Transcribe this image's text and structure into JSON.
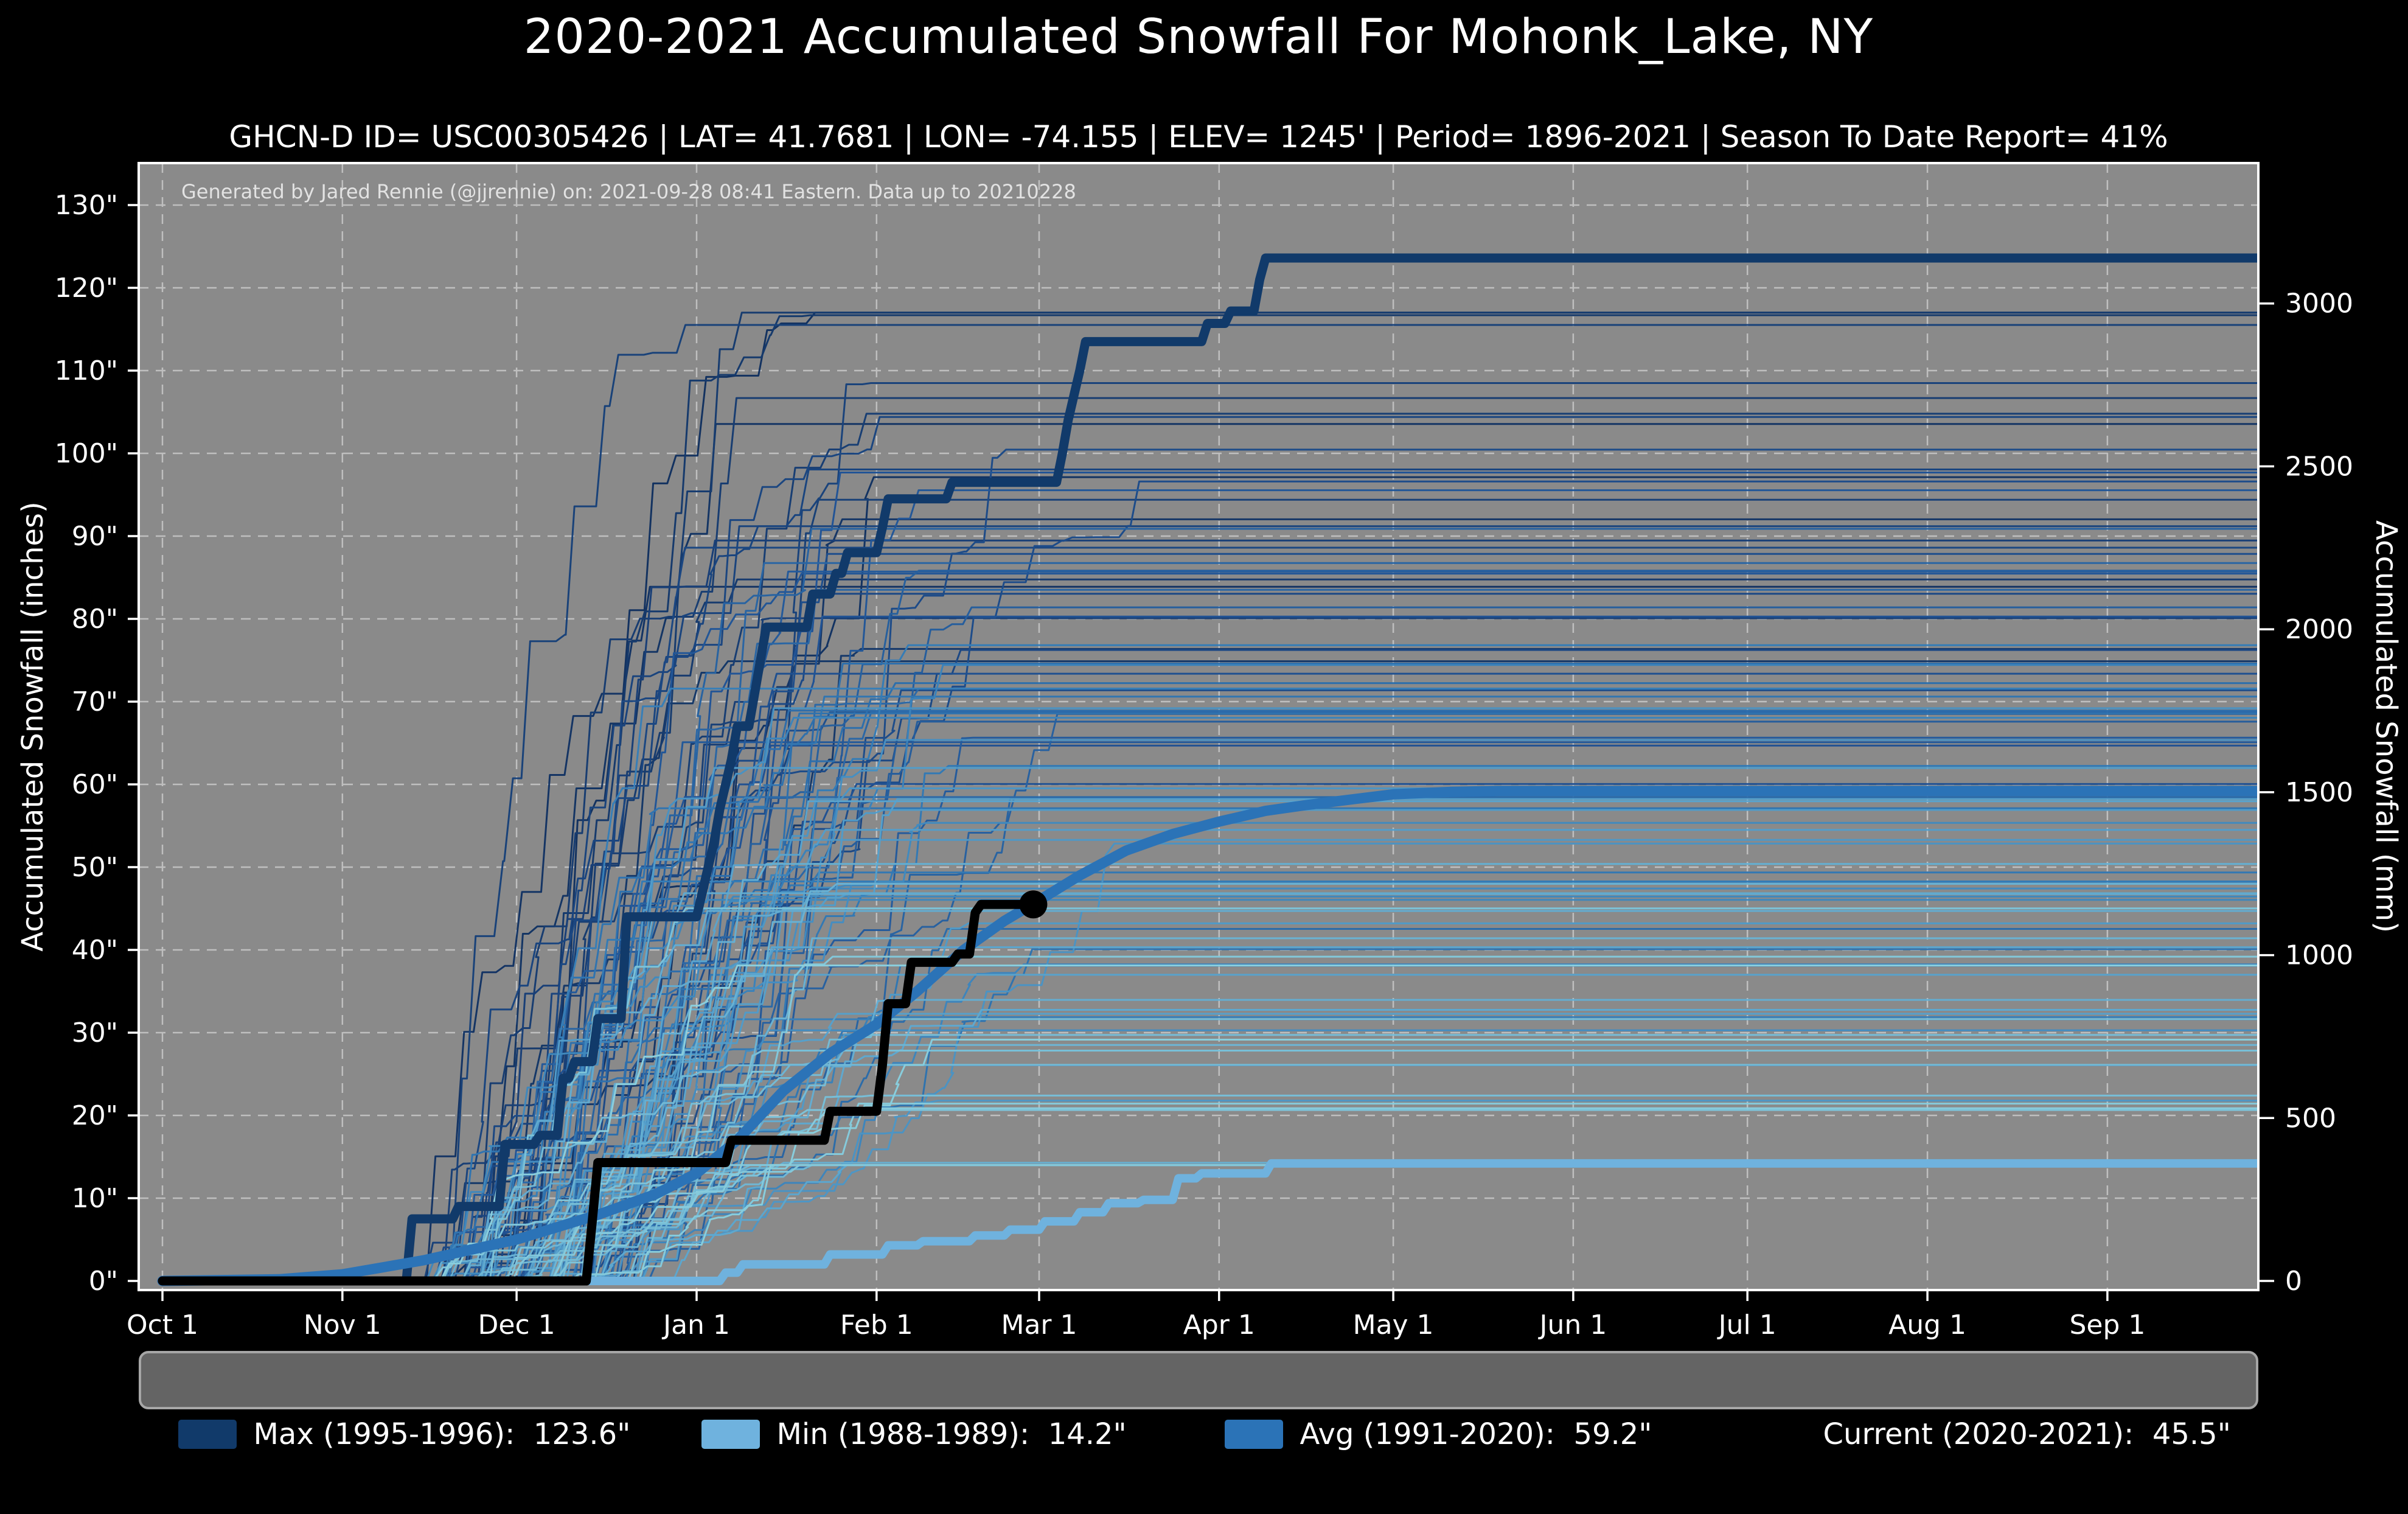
{
  "title": "2020-2021 Accumulated Snowfall For Mohonk_Lake, NY",
  "subtitle": "GHCN-D ID= USC00305426 | LAT= 41.7681 | LON= -74.155 | ELEV= 1245' | Period= 1896-2021 | Season To Date Report= 41%",
  "watermark": "Generated by Jared Rennie (@jjrennie) on: 2021-09-28 08:41 Eastern. Data up to 20210228",
  "colors": {
    "page_background": "#000000",
    "plot_background": "#8a8a8a",
    "gridline": "#ffffff",
    "spine": "#ffffff",
    "tick_label": "#ffffff",
    "title_text": "#ffffff",
    "watermark_text": "#e2e2e2",
    "legend_background": "#646464",
    "legend_border": "#a6a6a6"
  },
  "legend": {
    "entries": [
      {
        "id": "max",
        "label": "Max (1995-1996):  123.6\"",
        "color": "#113a6a"
      },
      {
        "id": "min",
        "label": "Min (1988-1989):  14.2\"",
        "color": "#6fb2de"
      },
      {
        "id": "avg",
        "label": "Avg (1991-2020):  59.2\"",
        "color": "#2b73b7"
      },
      {
        "id": "current",
        "label": "Current (2020-2021):  45.5\"",
        "color": "#000000"
      }
    ]
  },
  "chart_data": {
    "type": "line",
    "title": "2020-2021 Accumulated Snowfall For Mohonk_Lake, NY",
    "grid": true,
    "x_axis": {
      "unit": "day-of-season (Oct 1 = 0)",
      "range": [
        0,
        361
      ],
      "ticks": [
        {
          "day": 0,
          "label": "Oct 1"
        },
        {
          "day": 31,
          "label": "Nov 1"
        },
        {
          "day": 61,
          "label": "Dec 1"
        },
        {
          "day": 92,
          "label": "Jan 1"
        },
        {
          "day": 123,
          "label": "Feb 1"
        },
        {
          "day": 151,
          "label": "Mar 1"
        },
        {
          "day": 182,
          "label": "Apr 1"
        },
        {
          "day": 212,
          "label": "May 1"
        },
        {
          "day": 243,
          "label": "Jun 1"
        },
        {
          "day": 273,
          "label": "Jul 1"
        },
        {
          "day": 304,
          "label": "Aug 1"
        },
        {
          "day": 335,
          "label": "Sep 1"
        }
      ]
    },
    "y_axis_left": {
      "label": "Accumulated Snowfall (inches)",
      "range": [
        0,
        135
      ],
      "ticks": [
        {
          "v": 0,
          "label": "0\""
        },
        {
          "v": 10,
          "label": "10\""
        },
        {
          "v": 20,
          "label": "20\""
        },
        {
          "v": 30,
          "label": "30\""
        },
        {
          "v": 40,
          "label": "40\""
        },
        {
          "v": 50,
          "label": "50\""
        },
        {
          "v": 60,
          "label": "60\""
        },
        {
          "v": 70,
          "label": "70\""
        },
        {
          "v": 80,
          "label": "80\""
        },
        {
          "v": 90,
          "label": "90\""
        },
        {
          "v": 100,
          "label": "100\""
        },
        {
          "v": 110,
          "label": "110\""
        },
        {
          "v": 120,
          "label": "120\""
        },
        {
          "v": 130,
          "label": "130\""
        }
      ]
    },
    "y_axis_right": {
      "label": "Accumulated Snowfall (mm)",
      "mm_per_inch": 25.4,
      "ticks": [
        0,
        500,
        1000,
        1500,
        2000,
        2500,
        3000
      ]
    },
    "series": [
      {
        "id": "max",
        "name": "Max (1995-1996)",
        "total_in": 123.6,
        "color": "#113a6a",
        "width": 15,
        "points": [
          [
            0,
            0
          ],
          [
            42,
            0
          ],
          [
            43,
            7.5
          ],
          [
            50,
            7.5
          ],
          [
            51,
            9
          ],
          [
            58,
            9
          ],
          [
            59,
            16.5
          ],
          [
            64,
            16.5
          ],
          [
            65,
            17.6
          ],
          [
            68,
            17.6
          ],
          [
            69,
            24.5
          ],
          [
            70,
            24.5
          ],
          [
            71,
            26.5
          ],
          [
            74,
            26.5
          ],
          [
            75,
            31.7
          ],
          [
            79,
            31.7
          ],
          [
            80,
            44
          ],
          [
            92,
            44
          ],
          [
            93,
            47
          ],
          [
            94,
            50
          ],
          [
            95,
            53
          ],
          [
            96,
            57
          ],
          [
            97,
            60
          ],
          [
            98,
            63
          ],
          [
            99,
            67
          ],
          [
            101,
            67
          ],
          [
            102,
            71
          ],
          [
            103,
            75
          ],
          [
            104,
            79
          ],
          [
            111,
            79
          ],
          [
            112,
            83
          ],
          [
            115,
            83
          ],
          [
            116,
            85.5
          ],
          [
            117,
            85.5
          ],
          [
            118,
            88
          ],
          [
            123,
            88
          ],
          [
            124,
            91
          ],
          [
            125,
            94.5
          ],
          [
            135,
            94.5
          ],
          [
            136,
            96.5
          ],
          [
            154,
            96.5
          ],
          [
            155,
            100
          ],
          [
            156,
            104
          ],
          [
            157,
            107
          ],
          [
            158,
            110
          ],
          [
            159,
            113.5
          ],
          [
            179,
            113.5
          ],
          [
            180,
            115.7
          ],
          [
            183,
            115.7
          ],
          [
            184,
            117.2
          ],
          [
            188,
            117.2
          ],
          [
            189,
            121
          ],
          [
            190,
            123.6
          ],
          [
            361,
            123.6
          ]
        ]
      },
      {
        "id": "min",
        "name": "Min (1988-1989)",
        "total_in": 14.2,
        "color": "#6fb2de",
        "width": 14,
        "points": [
          [
            0,
            0
          ],
          [
            96,
            0
          ],
          [
            97,
            1
          ],
          [
            99,
            1
          ],
          [
            100,
            2
          ],
          [
            114,
            2
          ],
          [
            115,
            3.2
          ],
          [
            124,
            3.2
          ],
          [
            125,
            4.3
          ],
          [
            130,
            4.3
          ],
          [
            131,
            4.8
          ],
          [
            139,
            4.8
          ],
          [
            140,
            5.5
          ],
          [
            145,
            5.5
          ],
          [
            146,
            6.2
          ],
          [
            151,
            6.2
          ],
          [
            152,
            7.2
          ],
          [
            157,
            7.2
          ],
          [
            158,
            8.3
          ],
          [
            162,
            8.3
          ],
          [
            163,
            9.4
          ],
          [
            168,
            9.4
          ],
          [
            169,
            9.8
          ],
          [
            174,
            9.8
          ],
          [
            175,
            12.4
          ],
          [
            178,
            12.4
          ],
          [
            179,
            13
          ],
          [
            190,
            13
          ],
          [
            191,
            14.2
          ],
          [
            361,
            14.2
          ]
        ]
      },
      {
        "id": "avg",
        "name": "Avg (1991-2020)",
        "total_in": 59.2,
        "color": "#2b73b7",
        "width": 17,
        "points": [
          [
            0,
            0
          ],
          [
            20,
            0.2
          ],
          [
            31,
            0.8
          ],
          [
            45,
            2.5
          ],
          [
            61,
            5
          ],
          [
            75,
            8
          ],
          [
            85,
            10.5
          ],
          [
            92,
            13
          ],
          [
            99,
            17
          ],
          [
            107,
            23
          ],
          [
            115,
            27.5
          ],
          [
            123,
            31
          ],
          [
            130,
            35
          ],
          [
            138,
            40
          ],
          [
            145,
            43.5
          ],
          [
            151,
            46
          ],
          [
            158,
            49
          ],
          [
            166,
            52
          ],
          [
            174,
            54
          ],
          [
            182,
            55.5
          ],
          [
            190,
            56.8
          ],
          [
            197,
            57.5
          ],
          [
            205,
            58.2
          ],
          [
            212,
            58.8
          ],
          [
            222,
            59.1
          ],
          [
            230,
            59.2
          ],
          [
            361,
            59.2
          ]
        ]
      },
      {
        "id": "current",
        "name": "Current (2020-2021)",
        "total_in": 45.5,
        "color": "#000000",
        "width": 15,
        "points": [
          [
            0,
            0
          ],
          [
            73,
            0
          ],
          [
            74,
            7
          ],
          [
            75,
            14.3
          ],
          [
            97,
            14.3
          ],
          [
            98,
            17
          ],
          [
            114,
            17
          ],
          [
            115,
            20.5
          ],
          [
            123,
            20.5
          ],
          [
            124,
            26
          ],
          [
            125,
            33.5
          ],
          [
            128,
            33.5
          ],
          [
            129,
            38.5
          ],
          [
            136,
            38.5
          ],
          [
            137,
            39.5
          ],
          [
            139,
            39.5
          ],
          [
            140,
            44.5
          ],
          [
            141,
            45.5
          ],
          [
            150,
            45.5
          ]
        ],
        "end_marker": {
          "day": 150,
          "value": 45.5,
          "radius": 23
        }
      }
    ],
    "background_years": {
      "description": "One thin stepped line per season 1896-2020 (unlabeled spaghetti), color graded dark navy (early/high) to pale cyan (light/low), each flattening by late spring",
      "count": 120,
      "seed": 20210228,
      "final_value_min_in": 14,
      "final_value_max_in": 117,
      "start_day_range": [
        42,
        80
      ],
      "end_day_range": [
        160,
        208
      ],
      "color_stops": [
        "#0d2e5e",
        "#1b4f94",
        "#2f7ab8",
        "#59a7d2",
        "#8ad2e2"
      ],
      "line_width": 3,
      "opacity": 0.95
    }
  }
}
